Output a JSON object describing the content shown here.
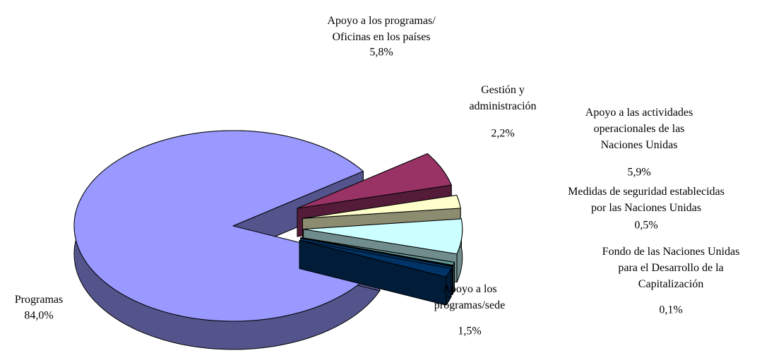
{
  "chart_data": {
    "type": "pie",
    "categories": [
      "Programas",
      "Apoyo a los programas/\nOficinas en los países",
      "Gestión y\nadministración",
      "Apoyo a las actividades\noperacionales de las\nNaciones Unidas",
      "Medidas de seguridad establecidas\npor las Naciones Unidas",
      "Fondo de las Naciones Unidas\npara el Desarrollo de la\nCapitalización",
      "Apoyo a los\nprogramas/sede"
    ],
    "values": [
      84.0,
      5.8,
      2.2,
      5.9,
      0.5,
      0.1,
      1.5
    ],
    "value_labels": [
      "84,0%",
      "5,8%",
      "2,2%",
      "5,9%",
      "0,5%",
      "0,1%",
      "1,5%"
    ],
    "colors": [
      "#9999ff",
      "#993366",
      "#ffffcc",
      "#ccffff",
      "#669999",
      "#0066cc",
      "#003366"
    ]
  }
}
